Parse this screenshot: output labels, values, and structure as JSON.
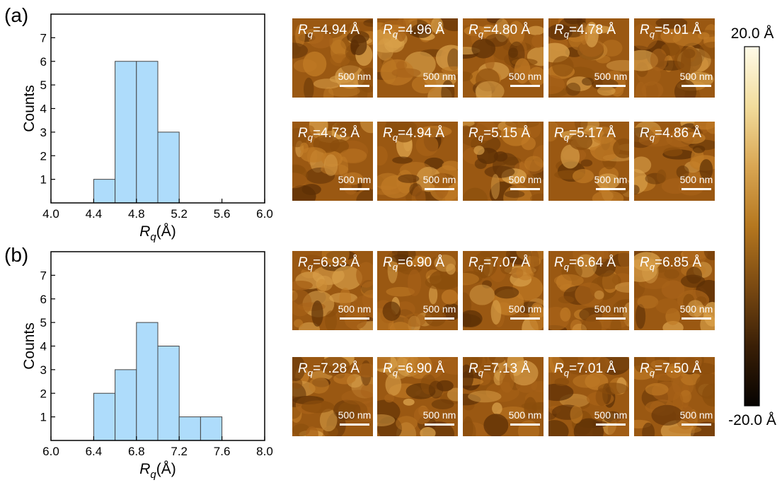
{
  "panels": [
    {
      "label": "(a)",
      "afm_rows": [
        [
          "4.94 Å",
          "4.96 Å",
          "4.80 Å",
          "4.78 Å",
          "5.01 Å"
        ],
        [
          "4.73 Å",
          "4.94 Å",
          "5.15 Å",
          "5.17 Å",
          "4.86 Å"
        ]
      ]
    },
    {
      "label": "(b)",
      "afm_rows": [
        [
          "6.93 Å",
          "6.90 Å",
          "7.07 Å",
          "6.64 Å",
          "6.85 Å"
        ],
        [
          "7.28 Å",
          "6.90 Å",
          "7.13 Å",
          "7.01 Å",
          "7.50 Å"
        ]
      ]
    }
  ],
  "image_label": {
    "rq_symbol": "R",
    "rq_subscript": "q",
    "equals": "=",
    "scalebar_text": "500 nm"
  },
  "colorbar": {
    "max_label": "20.0 Å",
    "min_label": "-20.0 Å",
    "colors": [
      "#060301",
      "#3a1f06",
      "#7b4a12",
      "#b5771f",
      "#d9a653",
      "#f2dc9c",
      "#fffbe8"
    ]
  },
  "colors": {
    "bar_fill": "#aedcfb",
    "bar_stroke": "#444444"
  },
  "chart_data": [
    {
      "type": "bar",
      "subtype": "histogram",
      "bin_edges": [
        4.4,
        4.6,
        4.8,
        5.0,
        5.2
      ],
      "values": [
        1,
        6,
        6,
        3
      ],
      "x_ticks": [
        "4.0",
        "4.4",
        "4.8",
        "5.2",
        "5.6",
        "6.0"
      ],
      "y_ticks": [
        "1",
        "2",
        "3",
        "4",
        "5",
        "6",
        "7"
      ],
      "xlim": [
        4.0,
        6.0
      ],
      "ylim": [
        0,
        8
      ],
      "xlabel_main": "R",
      "xlabel_sub": "q",
      "xlabel_unit": "(Å)",
      "ylabel": "Counts",
      "grid": false
    },
    {
      "type": "bar",
      "subtype": "histogram",
      "bin_edges": [
        6.4,
        6.6,
        6.8,
        7.0,
        7.2,
        7.4,
        7.6
      ],
      "values": [
        2,
        3,
        5,
        4,
        1,
        1
      ],
      "x_ticks": [
        "6.0",
        "6.4",
        "6.8",
        "7.2",
        "7.6",
        "8.0"
      ],
      "y_ticks": [
        "1",
        "2",
        "3",
        "4",
        "5",
        "6",
        "7"
      ],
      "xlim": [
        6.0,
        8.0
      ],
      "ylim": [
        0,
        8
      ],
      "xlabel_main": "R",
      "xlabel_sub": "q",
      "xlabel_unit": "(Å)",
      "ylabel": "Counts",
      "grid": false
    }
  ]
}
